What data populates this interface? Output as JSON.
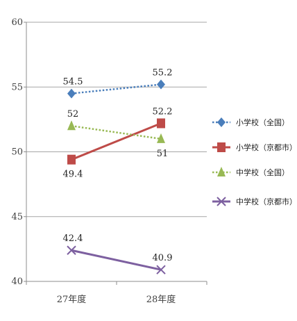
{
  "chart_data": {
    "type": "line",
    "title": "",
    "xlabel": "",
    "ylabel": "",
    "categories": [
      "27年度",
      "28年度"
    ],
    "ylim": [
      40,
      60
    ],
    "yticks": [
      40,
      45,
      50,
      55,
      60
    ],
    "grid": true,
    "legend_position": "right",
    "series": [
      {
        "name": "小学校（全国）",
        "values": [
          54.5,
          55.2
        ],
        "labels": [
          "54.5",
          "55.2"
        ],
        "color": "#4a7ebb",
        "marker": "diamond",
        "line_style": "dotted",
        "label_position": "above"
      },
      {
        "name": "小学校（京都市）",
        "values": [
          49.4,
          52.2
        ],
        "labels": [
          "49.4",
          "52.2"
        ],
        "color": "#be4b48",
        "marker": "square",
        "line_style": "solid",
        "label_position": "below-first-above-last"
      },
      {
        "name": "中学校（全国）",
        "values": [
          52,
          51
        ],
        "labels": [
          "52",
          "51"
        ],
        "color": "#98b954",
        "marker": "triangle",
        "line_style": "dotted",
        "label_position": "above-first-below-last"
      },
      {
        "name": "中学校（京都市）",
        "values": [
          42.4,
          40.9
        ],
        "labels": [
          "42.4",
          "40.9"
        ],
        "color": "#7d60a0",
        "marker": "x",
        "line_style": "solid",
        "label_position": "above"
      }
    ]
  }
}
